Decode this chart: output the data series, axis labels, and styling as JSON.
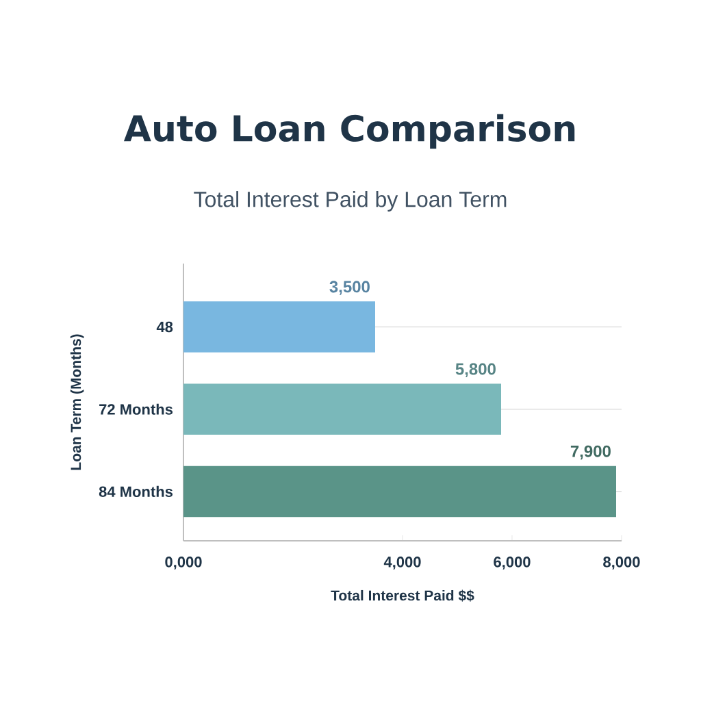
{
  "chart_data": {
    "type": "bar",
    "orientation": "horizontal",
    "title": "Auto Loan Comparison",
    "subtitle": "Total Interest Paid by Loan Term",
    "xlabel": "Total Interest Paid $$",
    "ylabel": "Loan Term (Months)",
    "categories": [
      "48",
      "72 Months",
      "84 Months"
    ],
    "values": [
      3500,
      5800,
      7900
    ],
    "colors": [
      "#79b7e0",
      "#7ab8ba",
      "#5a9488"
    ],
    "value_labels": [
      "3,500",
      "5,800",
      "7,900"
    ],
    "xlim": [
      0,
      8000
    ],
    "xticks": [
      {
        "value": 0,
        "label": "0,000"
      },
      {
        "value": 4000,
        "label": "4,000"
      },
      {
        "value": 6000,
        "label": "6,000"
      },
      {
        "value": 8000,
        "label": "8,000"
      }
    ],
    "grid": "y"
  }
}
